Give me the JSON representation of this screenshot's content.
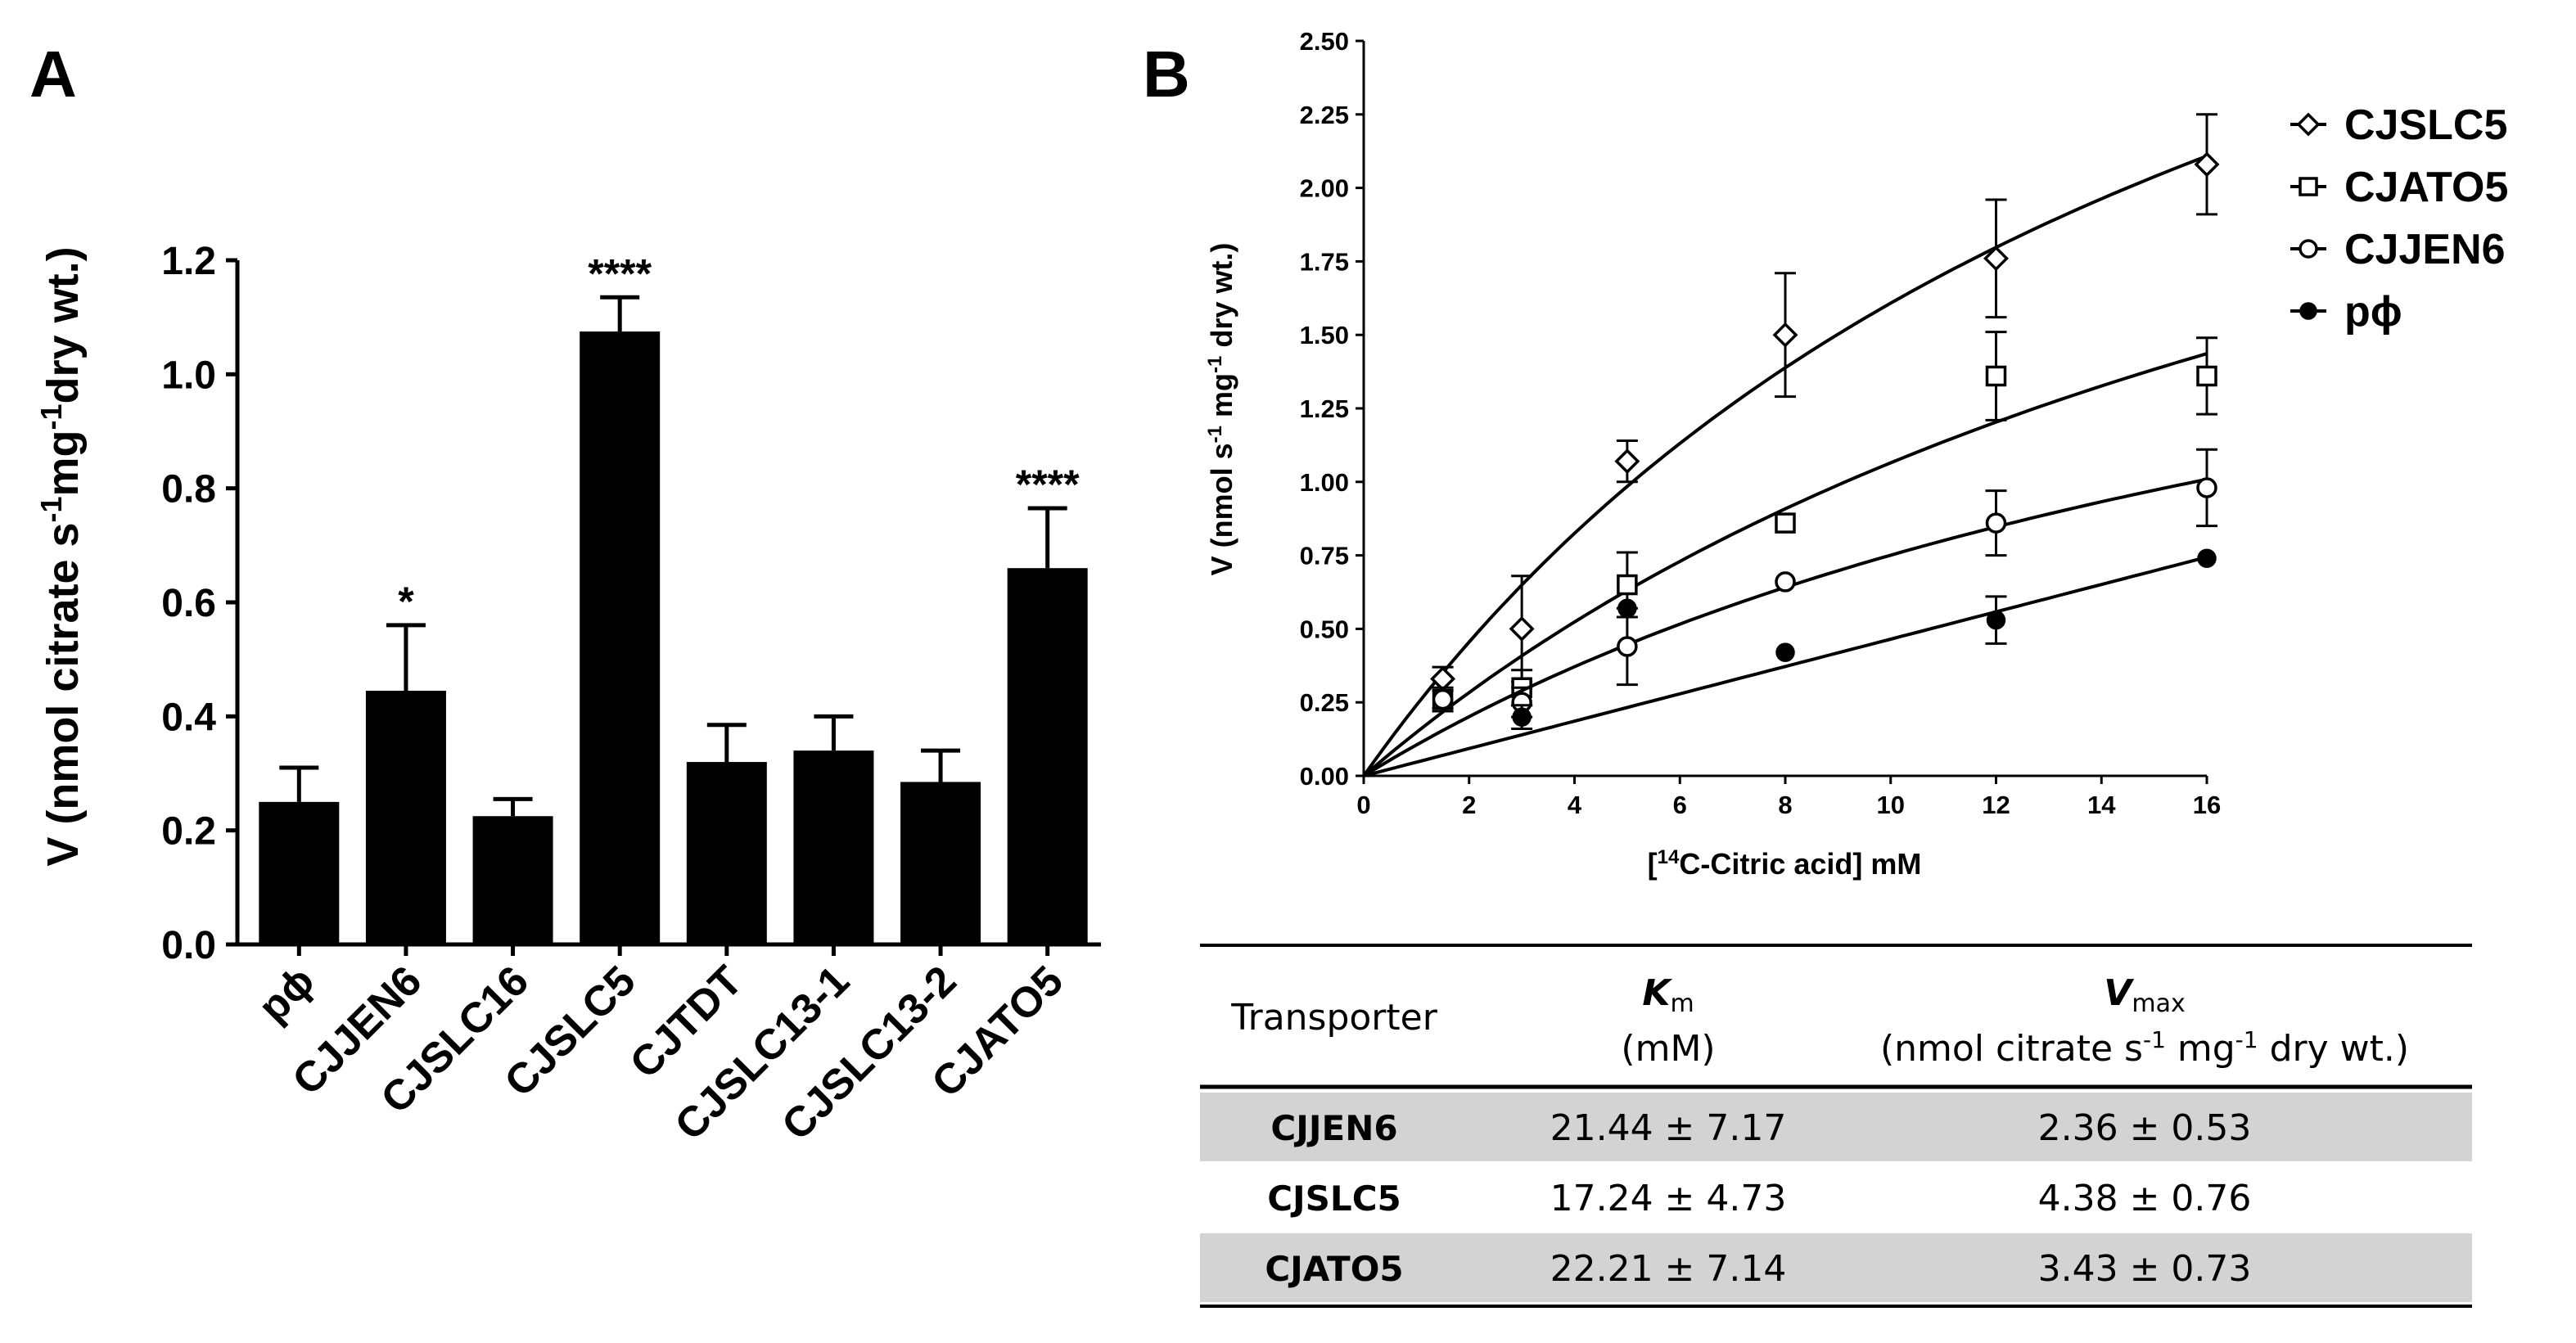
{
  "panel_a": {
    "letter": "A",
    "ylabel_parts": [
      "V (nmol citrate s",
      "-1",
      "mg",
      "-1",
      "dry wt.)"
    ]
  },
  "panel_b": {
    "letter": "B",
    "ylabel_parts": [
      "V (nmol s",
      "-1",
      " mg",
      "-1",
      " dry wt.)"
    ],
    "xlabel_parts": [
      "[",
      "14",
      "C-Citric acid] mM"
    ]
  },
  "table": {
    "header": {
      "transporter": "Transporter",
      "km_symbol": "K",
      "km_sub": "m",
      "km_unit": "(mM)",
      "vmax_symbol": "V",
      "vmax_sub": "max",
      "vmax_unit_parts": [
        "(nmol citrate s",
        "-1",
        " mg",
        "-1",
        " dry wt.)"
      ]
    },
    "rows": [
      {
        "name": "CJJEN6",
        "km": "21.44 ± 7.17",
        "vmax": "2.36 ± 0.53",
        "shaded": true
      },
      {
        "name": "CJSLC5",
        "km": "17.24 ± 4.73",
        "vmax": "4.38 ± 0.76",
        "shaded": false
      },
      {
        "name": "CJATO5",
        "km": "22.21 ± 7.14",
        "vmax": "3.43 ± 0.73",
        "shaded": true
      }
    ],
    "shade_color": "#d3d3d3"
  },
  "chart_data": [
    {
      "type": "bar",
      "panel": "A",
      "title": "",
      "xlabel": "",
      "ylabel": "V (nmol citrate s-1 mg-1 dry wt.)",
      "categories": [
        "pϕ",
        "CJJEN6",
        "CJSLC16",
        "CJSLC5",
        "CJTDT",
        "CJSLC13-1",
        "CJSLC13-2",
        "CJATO5"
      ],
      "values": [
        0.25,
        0.445,
        0.225,
        1.075,
        0.32,
        0.34,
        0.285,
        0.66
      ],
      "errors": [
        0.06,
        0.115,
        0.03,
        0.06,
        0.065,
        0.06,
        0.055,
        0.105
      ],
      "significance": [
        "",
        "*",
        "",
        "****",
        "",
        "",
        "",
        "****"
      ],
      "ylim": [
        0,
        1.2
      ],
      "yticks": [
        "0.0",
        "0.2",
        "0.4",
        "0.6",
        "0.8",
        "1.0",
        "1.2"
      ],
      "bar_color": "#000000",
      "grid": false
    },
    {
      "type": "scatter",
      "panel": "B",
      "title": "",
      "xlabel": "[14C-Citric acid] mM",
      "ylabel": "V (nmol s-1 mg-1 dry wt.)",
      "xlim": [
        0,
        16
      ],
      "ylim": [
        0,
        2.5
      ],
      "xticks": [
        "0",
        "2",
        "4",
        "6",
        "8",
        "10",
        "12",
        "14",
        "16"
      ],
      "yticks": [
        "0.00",
        "0.25",
        "0.50",
        "0.75",
        "1.00",
        "1.25",
        "1.50",
        "1.75",
        "2.00",
        "2.25",
        "2.50"
      ],
      "legend_position": "top-right",
      "grid": false,
      "series": [
        {
          "name": "CJSLC5",
          "marker": "diamond",
          "x": [
            1.5,
            3,
            5,
            8,
            12,
            16
          ],
          "y": [
            0.33,
            0.5,
            1.07,
            1.5,
            1.76,
            2.08
          ],
          "err": [
            0.04,
            0.18,
            0.07,
            0.21,
            0.2,
            0.17
          ],
          "fit": {
            "vmax": 4.38,
            "km": 17.24
          }
        },
        {
          "name": "CJATO5",
          "marker": "square",
          "x": [
            1.5,
            3,
            5,
            8,
            12,
            16
          ],
          "y": [
            0.26,
            0.3,
            0.65,
            0.86,
            1.36,
            1.36
          ],
          "err": [
            0.04,
            0.06,
            0.11,
            0.0,
            0.15,
            0.13
          ],
          "fit": {
            "vmax": 3.43,
            "km": 22.21
          }
        },
        {
          "name": "CJJEN6",
          "marker": "circle-open",
          "x": [
            1.5,
            3,
            5,
            8,
            12,
            16
          ],
          "y": [
            0.26,
            0.25,
            0.44,
            0.66,
            0.86,
            0.98
          ],
          "err": [
            0.03,
            0.05,
            0.13,
            0.0,
            0.11,
            0.13
          ],
          "fit": {
            "vmax": 2.36,
            "km": 21.44
          }
        },
        {
          "name": "pϕ",
          "marker": "circle-filled",
          "x": [
            3,
            5,
            8,
            12,
            16
          ],
          "y": [
            0.2,
            0.57,
            0.42,
            0.53,
            0.74
          ],
          "err": [
            0.04,
            0.0,
            0.0,
            0.08,
            0.0
          ],
          "fit": {
            "slope": 0.0465
          }
        }
      ]
    }
  ]
}
